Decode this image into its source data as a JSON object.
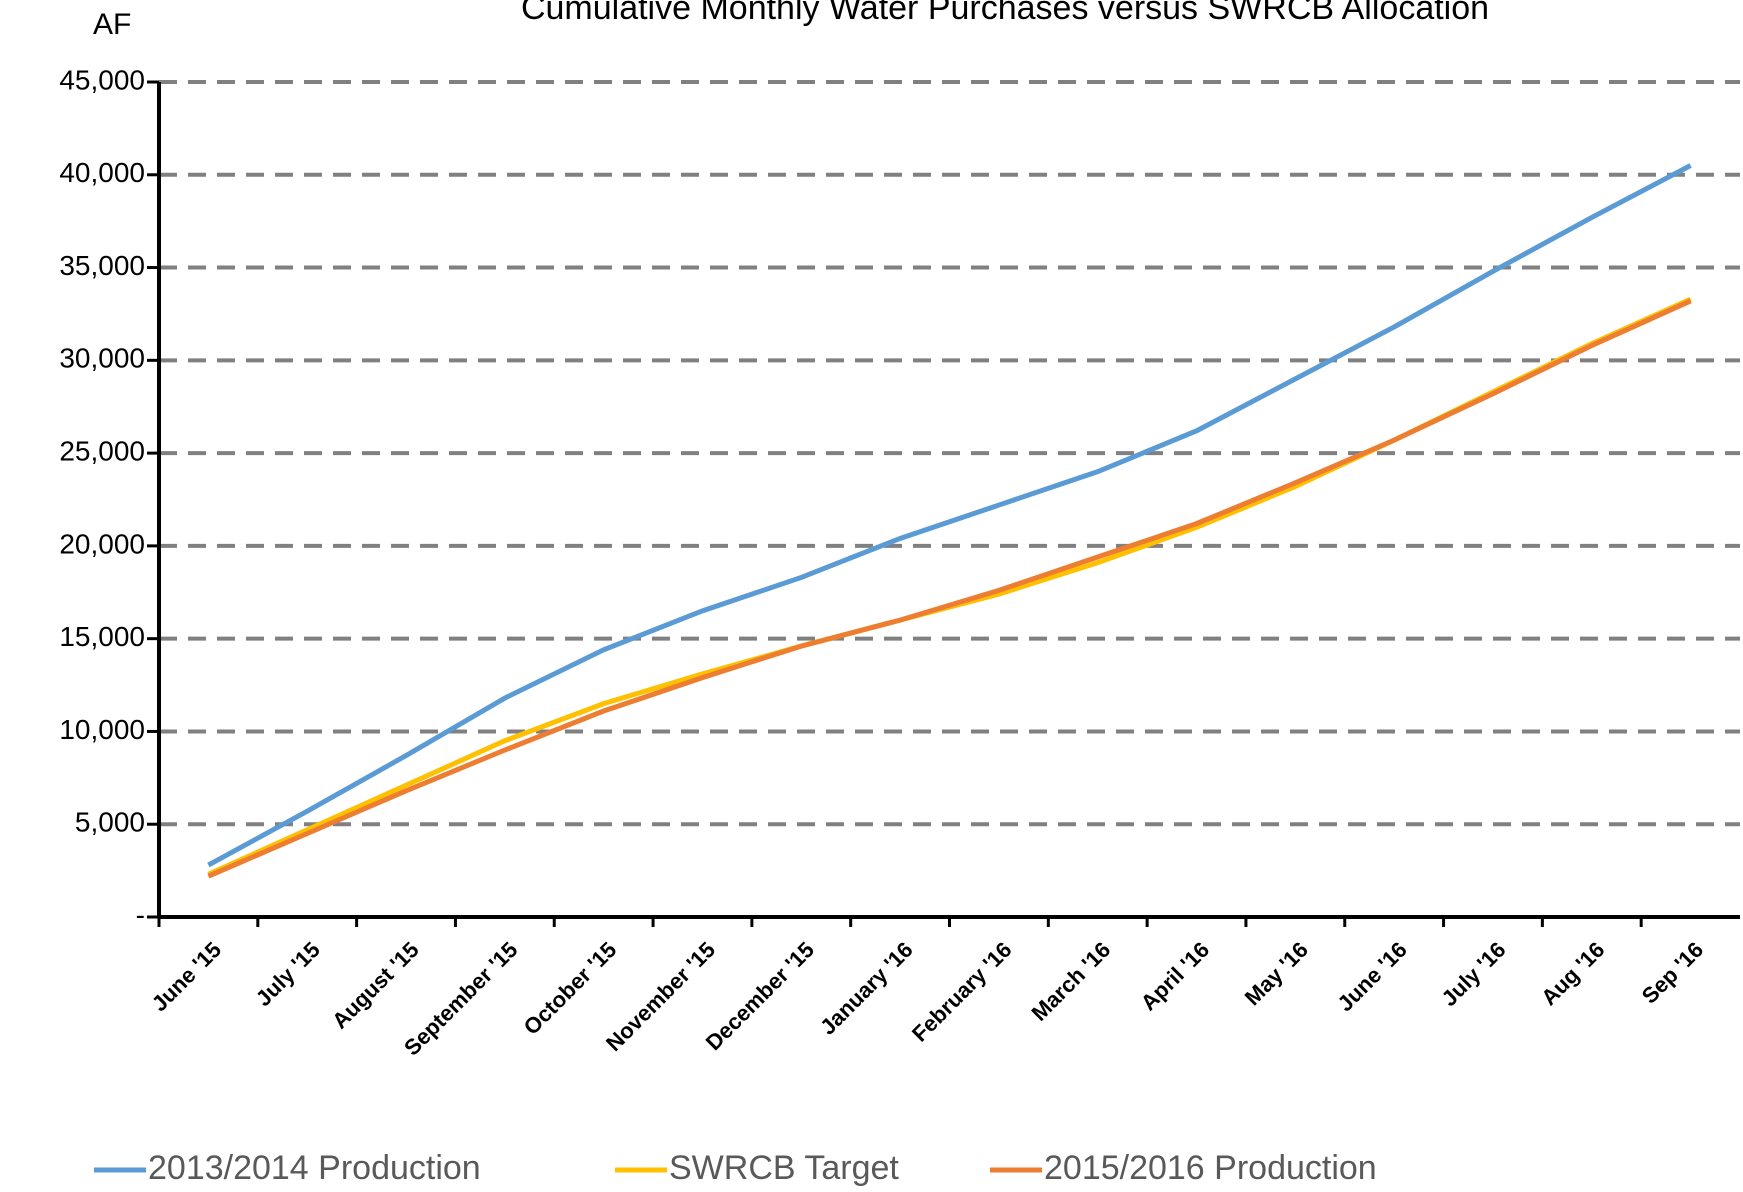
{
  "chart_data": {
    "type": "line",
    "title": "Cumulative Monthly Water Purchases versus SWRCB Allocation",
    "y_label": "AF",
    "categories": [
      "June '15",
      "July '15",
      "August '15",
      "September '15",
      "October '15",
      "November '15",
      "December '15",
      "January '16",
      "February '16",
      "March '16",
      "April '16",
      "May '16",
      "June '16",
      "July '16",
      "Aug '16",
      "Sep '16"
    ],
    "series": [
      {
        "name": "2013/2014 Production",
        "color": "#5b9bd5",
        "values": [
          2800,
          5700,
          8700,
          11800,
          14400,
          16500,
          18300,
          20400,
          22200,
          24000,
          26200,
          29000,
          31800,
          34800,
          37700,
          40500
        ]
      },
      {
        "name": "SWRCB Target",
        "color": "#ffc000",
        "values": [
          2300,
          4700,
          7100,
          9500,
          11500,
          13100,
          14600,
          16000,
          17400,
          19100,
          21000,
          23200,
          25700,
          28300,
          30900,
          33300
        ]
      },
      {
        "name": "2015/2016 Production",
        "color": "#ed7d31",
        "values": [
          2200,
          4500,
          6800,
          9000,
          11100,
          12900,
          14600,
          16000,
          17600,
          19400,
          21200,
          23400,
          25700,
          28200,
          30800,
          33200
        ]
      }
    ],
    "ylim": [
      0,
      45000
    ],
    "yticks": [
      {
        "value": 0,
        "label": "-"
      },
      {
        "value": 5000,
        "label": "5,000"
      },
      {
        "value": 10000,
        "label": "10,000"
      },
      {
        "value": 15000,
        "label": "15,000"
      },
      {
        "value": 20000,
        "label": "20,000"
      },
      {
        "value": 25000,
        "label": "25,000"
      },
      {
        "value": 30000,
        "label": "30,000"
      },
      {
        "value": 35000,
        "label": "35,000"
      },
      {
        "value": 40000,
        "label": "40,000"
      },
      {
        "value": 45000,
        "label": "45,000"
      }
    ],
    "grid": true,
    "legend": "bottom"
  }
}
